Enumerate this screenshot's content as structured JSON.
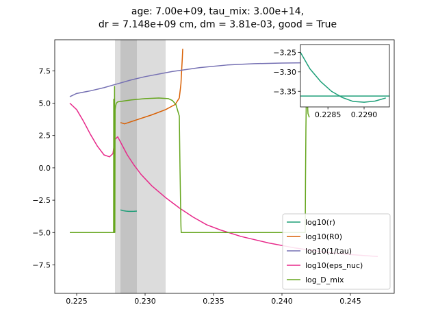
{
  "chart_data": [
    {
      "type": "line",
      "title_line1": "age: 7.00e+09, tau_mix: 3.00e+14,",
      "title_line2": "dr = 7.148e+09 cm, dm = 3.81e-03, good = True",
      "xlabel": "",
      "ylabel": "",
      "xlim": [
        0.2234,
        0.2482
      ],
      "ylim": [
        -9.7,
        9.9
      ],
      "xticks": [
        0.225,
        0.23,
        0.235,
        0.24,
        0.245
      ],
      "xtick_labels": [
        "0.225",
        "0.230",
        "0.235",
        "0.240",
        "0.245"
      ],
      "yticks": [
        -7.5,
        -5.0,
        -2.5,
        0.0,
        2.5,
        5.0,
        7.5
      ],
      "ytick_labels": [
        "−7.5",
        "−5.0",
        "−2.5",
        "0.0",
        "2.5",
        "5.0",
        "7.5"
      ],
      "grid": false,
      "legend_position": "lower-right",
      "shaded_regions": [
        {
          "x0": 0.2278,
          "x1": 0.2315,
          "color": "#dcdcdc"
        },
        {
          "x0": 0.2282,
          "x1": 0.2294,
          "color": "#c3c3c3"
        }
      ],
      "series": [
        {
          "name": "log10(r)",
          "color": "#1b9e77",
          "x": [
            0.2282,
            0.2284,
            0.2286,
            0.2288,
            0.229,
            0.2292,
            0.2294
          ],
          "y": [
            -3.25,
            -3.31,
            -3.345,
            -3.36,
            -3.362,
            -3.356,
            -3.345
          ]
        },
        {
          "name": "log10(R0)",
          "color": "#d95f02",
          "x": [
            0.2282,
            0.2285,
            0.2295,
            0.2305,
            0.2315,
            0.2322,
            0.2325,
            0.23262,
            0.23272,
            0.23275
          ],
          "y": [
            3.5,
            3.4,
            3.75,
            4.1,
            4.5,
            4.9,
            5.4,
            6.5,
            8.5,
            9.2
          ]
        },
        {
          "name": "log10(1/tau)",
          "color": "#7570b3",
          "x": [
            0.2245,
            0.225,
            0.226,
            0.227,
            0.228,
            0.229,
            0.23,
            0.232,
            0.234,
            0.236,
            0.238,
            0.24,
            0.2416
          ],
          "y": [
            5.5,
            5.75,
            5.95,
            6.2,
            6.5,
            6.8,
            7.05,
            7.45,
            7.75,
            7.95,
            8.05,
            8.1,
            8.12
          ]
        },
        {
          "name": "log10(eps_nuc)",
          "color": "#e7298a",
          "x": [
            0.2245,
            0.225,
            0.2255,
            0.226,
            0.2265,
            0.227,
            0.2274,
            0.22765,
            0.2278,
            0.228,
            0.2283,
            0.2287,
            0.2292,
            0.2297,
            0.2305,
            0.2315,
            0.2325,
            0.2335,
            0.2345,
            0.2355,
            0.237,
            0.239,
            0.241,
            0.243,
            0.245,
            0.247
          ],
          "y": [
            5.0,
            4.5,
            3.6,
            2.6,
            1.7,
            1.0,
            0.85,
            1.1,
            2.2,
            2.4,
            1.8,
            1.0,
            0.2,
            -0.5,
            -1.4,
            -2.3,
            -3.1,
            -3.8,
            -4.4,
            -4.8,
            -5.3,
            -5.8,
            -6.2,
            -6.5,
            -6.7,
            -6.85
          ]
        },
        {
          "name": "log_D_mix",
          "color": "#66a61e",
          "x": [
            0.2245,
            0.2277,
            0.22771,
            0.22775,
            0.22777,
            0.22779,
            0.22781,
            0.22785,
            0.2279,
            0.228,
            0.229,
            0.23,
            0.231,
            0.2317,
            0.232,
            0.23225,
            0.2325,
            0.23255,
            0.23262,
            0.23264,
            0.2417,
            0.24172,
            0.24175,
            0.24178,
            0.24185,
            0.2419,
            0.242
          ],
          "y": [
            -5.0,
            -5.0,
            5.3,
            -5.0,
            6.3,
            -5.0,
            4.5,
            4.8,
            5.0,
            5.1,
            5.25,
            5.35,
            5.4,
            5.35,
            5.2,
            4.9,
            4.0,
            0.0,
            -4.5,
            -5.0,
            -5.0,
            -1.0,
            3.0,
            5.5,
            5.3,
            4.2,
            3.9
          ]
        }
      ]
    },
    {
      "type": "line",
      "inset": true,
      "xlim": [
        0.22812,
        0.22935
      ],
      "ylim": [
        -3.39,
        -3.23
      ],
      "xticks": [
        0.2285,
        0.229
      ],
      "xtick_labels": [
        "0.2285",
        "0.2290"
      ],
      "yticks": [
        -3.25,
        -3.3,
        -3.35
      ],
      "ytick_labels": [
        "−3.25",
        "−3.30",
        "−3.35"
      ],
      "series": [
        {
          "name": "log10(r)",
          "color": "#1b9e77",
          "x": [
            0.22812,
            0.22825,
            0.2284,
            0.22855,
            0.2287,
            0.22885,
            0.229,
            0.22915,
            0.2293
          ],
          "y": [
            -3.25,
            -3.292,
            -3.325,
            -3.35,
            -3.366,
            -3.376,
            -3.378,
            -3.375,
            -3.367
          ]
        },
        {
          "name": "log10(R0)",
          "color": "#d95f02",
          "x": [],
          "y": []
        },
        {
          "name": "log10(1/tau)",
          "color": "#7570b3",
          "x": [],
          "y": []
        },
        {
          "name": "log10(eps_nuc)",
          "color": "#e7298a",
          "x": [],
          "y": []
        },
        {
          "name": "log_D_mix",
          "color": "#66a61e",
          "x": [],
          "y": []
        }
      ],
      "hline": {
        "y": -3.362,
        "color": "#1b9e77"
      }
    }
  ]
}
